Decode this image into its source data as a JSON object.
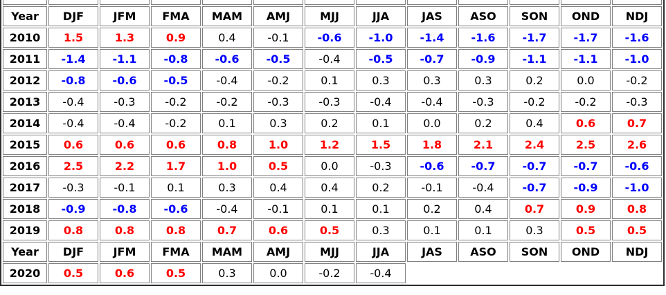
{
  "colors": {
    "warm_value": "#ff0000",
    "cold_value": "#0000ff",
    "neutral_value": "#000000",
    "header_text": "#000000",
    "cell_border": "#808080",
    "outer_border": "#2e2e2e",
    "background": "#ffffff"
  },
  "chart_data": {
    "type": "table",
    "columns": [
      "Year",
      "DJF",
      "JFM",
      "FMA",
      "MAM",
      "AMJ",
      "MJJ",
      "JJA",
      "JAS",
      "ASO",
      "SON",
      "OND",
      "NDJ"
    ],
    "value_color_rule": {
      "red_min": 0.5,
      "blue_max": -0.5
    },
    "sections": [
      {
        "rows": [
          {
            "year": "2010",
            "values": [
              "1.5",
              "1.3",
              "0.9",
              "0.4",
              "-0.1",
              "-0.6",
              "-1.0",
              "-1.4",
              "-1.6",
              "-1.7",
              "-1.7",
              "-1.6"
            ]
          },
          {
            "year": "2011",
            "values": [
              "-1.4",
              "-1.1",
              "-0.8",
              "-0.6",
              "-0.5",
              "-0.4",
              "-0.5",
              "-0.7",
              "-0.9",
              "-1.1",
              "-1.1",
              "-1.0"
            ]
          },
          {
            "year": "2012",
            "values": [
              "-0.8",
              "-0.6",
              "-0.5",
              "-0.4",
              "-0.2",
              "0.1",
              "0.3",
              "0.3",
              "0.3",
              "0.2",
              "0.0",
              "-0.2"
            ]
          },
          {
            "year": "2013",
            "values": [
              "-0.4",
              "-0.3",
              "-0.2",
              "-0.2",
              "-0.3",
              "-0.3",
              "-0.4",
              "-0.4",
              "-0.3",
              "-0.2",
              "-0.2",
              "-0.3"
            ]
          },
          {
            "year": "2014",
            "values": [
              "-0.4",
              "-0.4",
              "-0.2",
              "0.1",
              "0.3",
              "0.2",
              "0.1",
              "0.0",
              "0.2",
              "0.4",
              "0.6",
              "0.7"
            ]
          },
          {
            "year": "2015",
            "values": [
              "0.6",
              "0.6",
              "0.6",
              "0.8",
              "1.0",
              "1.2",
              "1.5",
              "1.8",
              "2.1",
              "2.4",
              "2.5",
              "2.6"
            ]
          },
          {
            "year": "2016",
            "values": [
              "2.5",
              "2.2",
              "1.7",
              "1.0",
              "0.5",
              "0.0",
              "-0.3",
              "-0.6",
              "-0.7",
              "-0.7",
              "-0.7",
              "-0.6"
            ]
          },
          {
            "year": "2017",
            "values": [
              "-0.3",
              "-0.1",
              "0.1",
              "0.3",
              "0.4",
              "0.4",
              "0.2",
              "-0.1",
              "-0.4",
              "-0.7",
              "-0.9",
              "-1.0"
            ]
          },
          {
            "year": "2018",
            "values": [
              "-0.9",
              "-0.8",
              "-0.6",
              "-0.4",
              "-0.1",
              "0.1",
              "0.1",
              "0.2",
              "0.4",
              "0.7",
              "0.9",
              "0.8"
            ]
          },
          {
            "year": "2019",
            "values": [
              "0.8",
              "0.8",
              "0.8",
              "0.7",
              "0.6",
              "0.5",
              "0.3",
              "0.1",
              "0.1",
              "0.3",
              "0.5",
              "0.5"
            ]
          }
        ]
      },
      {
        "rows": [
          {
            "year": "2020",
            "values": [
              "0.5",
              "0.6",
              "0.5",
              "0.3",
              "0.0",
              "-0.2",
              "-0.4"
            ]
          }
        ]
      }
    ]
  }
}
